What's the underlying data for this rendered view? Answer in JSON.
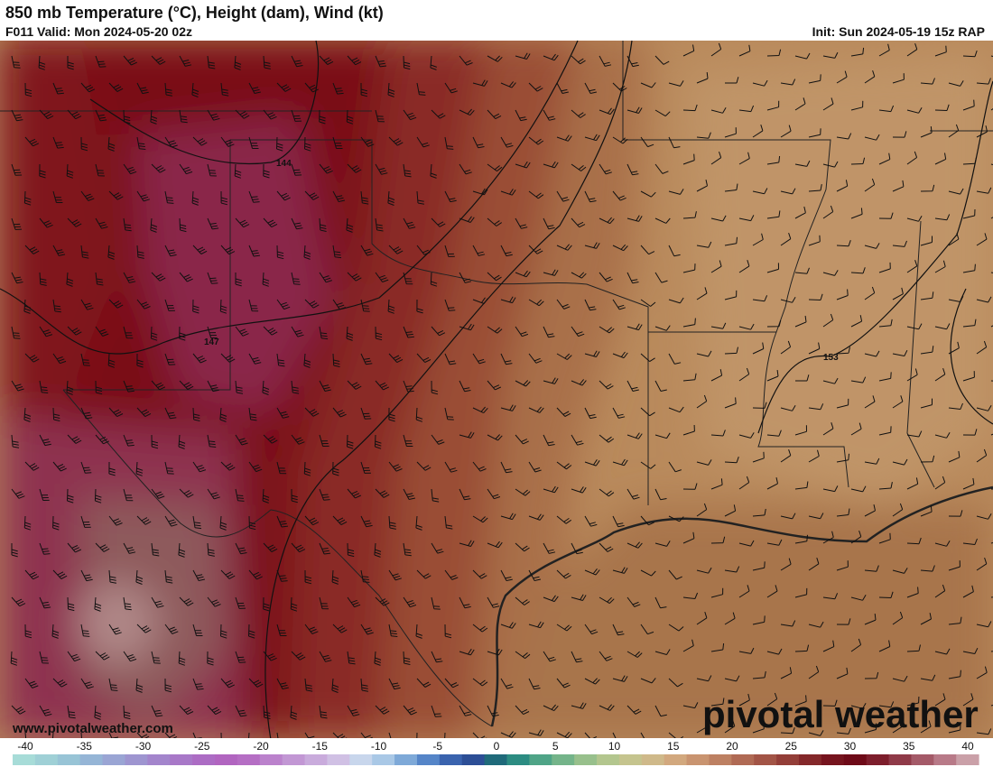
{
  "header": {
    "title": "850 mb Temperature (°C), Height (dam), Wind (kt)",
    "valid": "F011 Valid: Mon 2024-05-20 02z",
    "init": "Init: Sun 2024-05-19 15z RAP"
  },
  "contour_labels": [
    "144",
    "147",
    "153"
  ],
  "watermark": "www.pivotalweather.com",
  "logo": "pivotal weather",
  "colorbar": {
    "lim": [
      -40,
      42
    ],
    "ticks": [
      -40,
      -35,
      -30,
      -25,
      -20,
      -15,
      -10,
      -5,
      0,
      5,
      10,
      15,
      20,
      25,
      30,
      35,
      40
    ],
    "colors": [
      "#a7dcd8",
      "#9fd0d6",
      "#98c4d6",
      "#95b5d6",
      "#9aa5d4",
      "#9e95d0",
      "#a385cc",
      "#a878c8",
      "#ac6cc4",
      "#b165c0",
      "#b56ec4",
      "#bb82cc",
      "#c297d4",
      "#c9abdc",
      "#d0c0e4",
      "#c8d6ec",
      "#a9c8e6",
      "#7ea9d8",
      "#5585c8",
      "#3a63ae",
      "#2c4e96",
      "#1f6a7a",
      "#2c8c82",
      "#4fa487",
      "#74b48a",
      "#98c08c",
      "#b3c68e",
      "#c5c48e",
      "#cfb98a",
      "#d2a87e",
      "#c99470",
      "#bd8062",
      "#b06a54",
      "#a25446",
      "#933e38",
      "#84282a",
      "#76141e",
      "#6e0a18",
      "#7d1e2c",
      "#8f3a48",
      "#a45a68",
      "#b87a88",
      "#caa0a8"
    ]
  }
}
